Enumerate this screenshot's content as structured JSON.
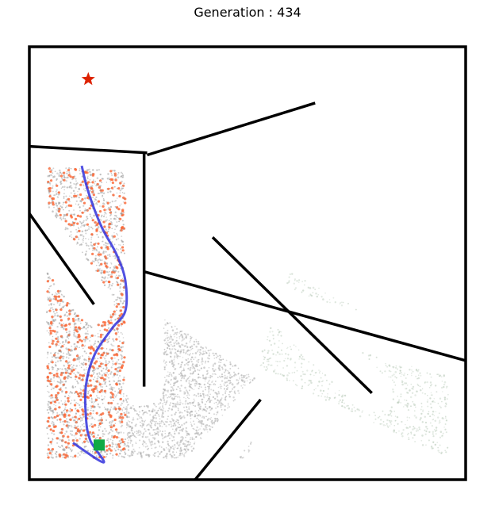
{
  "chart_data": {
    "type": "scatter",
    "title": "Generation : 434",
    "xlabel": "",
    "ylabel": "",
    "xlim": [
      0,
      1
    ],
    "ylim": [
      0,
      1
    ],
    "grid": false,
    "legend": "none",
    "walls": [
      [
        [
          0.0,
          0.77
        ],
        [
          0.27,
          0.755
        ]
      ],
      [
        [
          0.27,
          0.75
        ],
        [
          0.655,
          0.87
        ]
      ],
      [
        [
          0.263,
          0.755
        ],
        [
          0.263,
          0.215
        ]
      ],
      [
        [
          0.0,
          0.615
        ],
        [
          0.148,
          0.405
        ]
      ],
      [
        [
          0.265,
          0.48
        ],
        [
          1.0,
          0.275
        ]
      ],
      [
        [
          0.42,
          0.56
        ],
        [
          0.785,
          0.2
        ]
      ],
      [
        [
          0.38,
          0.0
        ],
        [
          0.53,
          0.185
        ]
      ]
    ],
    "goal": {
      "x": 0.135,
      "y": 0.925,
      "marker": "star",
      "color": "#dd2200"
    },
    "start": {
      "x": 0.16,
      "y": 0.08,
      "marker": "square",
      "color": "#11aa44"
    },
    "trajectory": {
      "color": "#3333dd",
      "points": [
        [
          0.12,
          0.725
        ],
        [
          0.135,
          0.665
        ],
        [
          0.165,
          0.585
        ],
        [
          0.2,
          0.52
        ],
        [
          0.22,
          0.46
        ],
        [
          0.22,
          0.39
        ],
        [
          0.19,
          0.35
        ],
        [
          0.15,
          0.29
        ],
        [
          0.13,
          0.22
        ],
        [
          0.13,
          0.14
        ],
        [
          0.14,
          0.09
        ],
        [
          0.17,
          0.04
        ],
        [
          0.1,
          0.085
        ]
      ]
    },
    "coverage_regions": [
      {
        "color": "#999999",
        "density": 0.9,
        "polygon": [
          [
            0.04,
            0.73
          ],
          [
            0.22,
            0.72
          ],
          [
            0.22,
            0.05
          ],
          [
            0.04,
            0.05
          ]
        ]
      },
      {
        "color": "#aaaaaa",
        "density": 0.55,
        "polygon": [
          [
            0.22,
            0.43
          ],
          [
            0.54,
            0.22
          ],
          [
            0.5,
            0.05
          ],
          [
            0.22,
            0.05
          ]
        ]
      },
      {
        "color": "#bbccbb",
        "density": 0.22,
        "polygon": [
          [
            0.52,
            0.26
          ],
          [
            0.96,
            0.05
          ],
          [
            0.96,
            0.28
          ],
          [
            0.6,
            0.48
          ]
        ]
      }
    ],
    "highlight_points": {
      "color": "#ff6633"
    }
  }
}
